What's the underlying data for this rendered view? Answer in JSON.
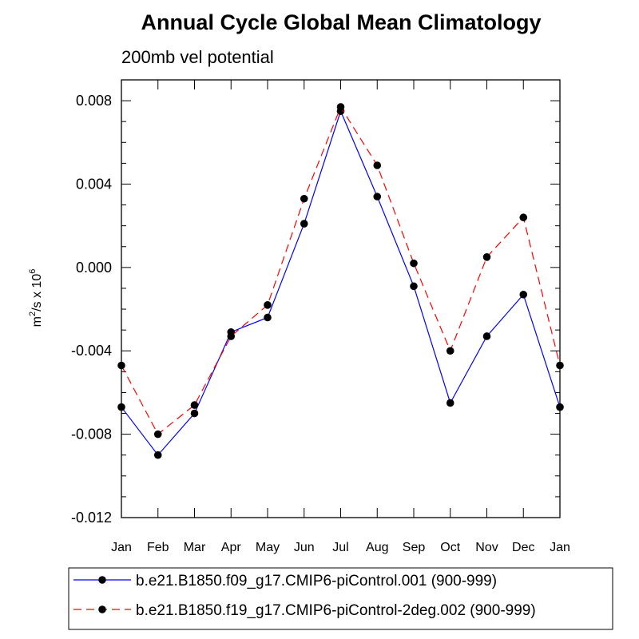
{
  "chart_data": {
    "type": "line",
    "title": "Annual Cycle Global Mean Climatology",
    "subtitle": "200mb vel potential",
    "ylabel": {
      "base": "m",
      "sup1": "2",
      "mid": "/s x 10",
      "sup2": "6"
    },
    "xlabel": "",
    "categories": [
      "Jan",
      "Feb",
      "Mar",
      "Apr",
      "May",
      "Jun",
      "Jul",
      "Aug",
      "Sep",
      "Oct",
      "Nov",
      "Dec",
      "Jan"
    ],
    "ylim": [
      -0.012,
      0.009
    ],
    "yticks": [
      -0.012,
      -0.008,
      -0.004,
      0.0,
      0.004,
      0.008
    ],
    "ytick_labels": [
      "-0.012",
      "-0.008",
      "-0.004",
      "0.000",
      "0.004",
      "0.008"
    ],
    "grid": false,
    "legend_position": "bottom",
    "series": [
      {
        "name": "b.e21.B1850.f09_g17.CMIP6-piControl.001 (900-999)",
        "color": "#0000ff",
        "dash": "solid",
        "values": [
          -0.0067,
          -0.009,
          -0.007,
          -0.0031,
          -0.0024,
          0.0021,
          0.0075,
          0.0034,
          -0.0009,
          -0.0065,
          -0.0033,
          -0.0013,
          -0.0067
        ]
      },
      {
        "name": "b.e21.B1850.f19_g17.CMIP6-piControl-2deg.002 (900-999)",
        "color": "#ff0000",
        "dash": "dashed",
        "values": [
          -0.0047,
          -0.008,
          -0.0066,
          -0.0033,
          -0.0018,
          0.0033,
          0.0077,
          0.0049,
          0.0002,
          -0.004,
          0.0005,
          0.0024,
          -0.0047
        ]
      }
    ],
    "marker_color": "#000000"
  }
}
